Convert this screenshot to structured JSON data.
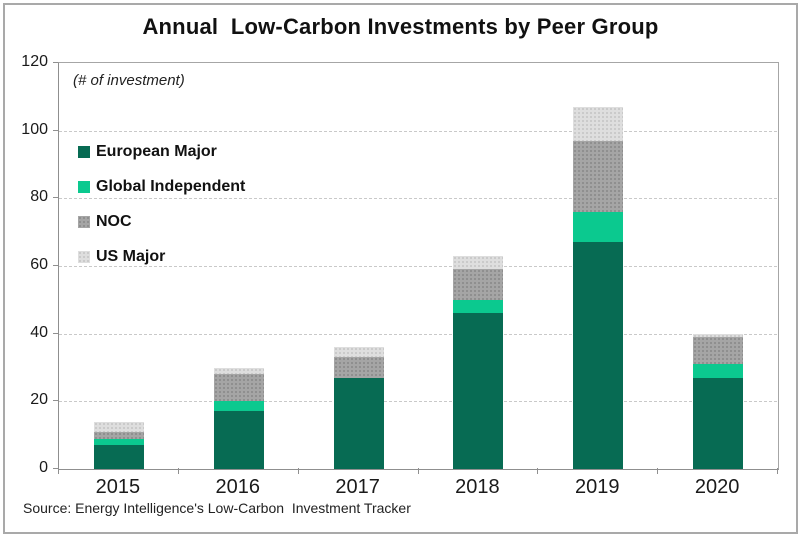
{
  "window": {
    "background": "#FFFFFF",
    "frame_border_color": "#A9A9A9"
  },
  "chart_data": {
    "type": "bar",
    "stacked": true,
    "title": "Annual  Low-Carbon Investments by Peer Group",
    "annotation": "(# of investment)",
    "categories": [
      "2015",
      "2016",
      "2017",
      "2018",
      "2019",
      "2020"
    ],
    "series": [
      {
        "name": "European Major",
        "color": "#076B53",
        "pattern": "solid",
        "values": [
          7,
          17,
          27,
          46,
          67,
          27
        ]
      },
      {
        "name": "Global Independent",
        "color": "#0BC98F",
        "pattern": "solid",
        "values": [
          2,
          3,
          0,
          4,
          9,
          4
        ]
      },
      {
        "name": "NOC",
        "color": "#A5A5A5",
        "pattern": "dots",
        "dot_color": "#8D8D8D",
        "values": [
          2,
          8,
          6,
          9,
          21,
          8
        ]
      },
      {
        "name": "US Major",
        "color": "#DEDEDE",
        "pattern": "dots",
        "dot_color": "#C8C8C8",
        "values": [
          3,
          2,
          3,
          4,
          10,
          1
        ]
      }
    ],
    "totals": [
      14,
      30,
      36,
      63,
      107,
      40
    ],
    "ylim": [
      0,
      120
    ],
    "y_ticks": [
      0,
      20,
      40,
      60,
      80,
      100,
      120
    ],
    "grid": true,
    "gridline_color": "#C9C9C9",
    "axis_color": "#8F8F8F",
    "legend_position": "top-left",
    "xlabel": "",
    "ylabel": ""
  },
  "source_note": "Source: Energy Intelligence's Low-Carbon  Investment Tracker"
}
